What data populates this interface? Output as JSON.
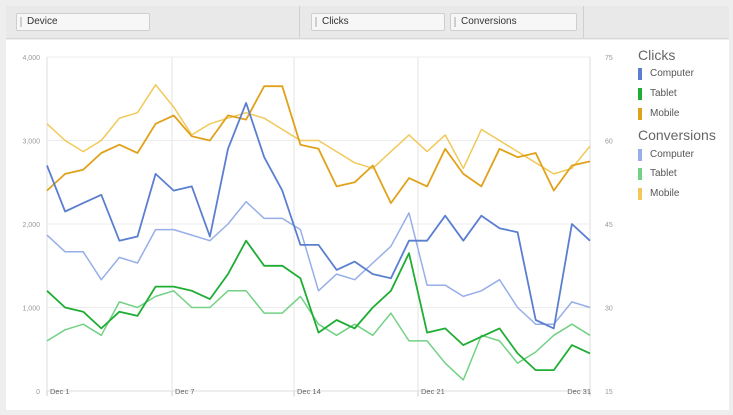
{
  "toolbar": {
    "dimension_label": "Device",
    "metric1_label": "Clicks",
    "metric2_label": "Conversions"
  },
  "legend": {
    "clicks_title": "Clicks",
    "conversions_title": "Conversions",
    "clicks_items": [
      "Computer",
      "Tablet",
      "Mobile"
    ],
    "conversions_items": [
      "Computer",
      "Tablet",
      "Mobile"
    ]
  },
  "colors": {
    "clicks_computer": "#5b7fd0",
    "clicks_tablet": "#1fad34",
    "clicks_mobile": "#e0a21b",
    "conversions_computer": "#97aee8",
    "conversions_tablet": "#72d184",
    "conversions_mobile": "#f1c95a"
  },
  "chart_data": {
    "type": "line",
    "x_ticks": [
      "Dec 1",
      "Dec 7",
      "Dec 14",
      "Dec 21",
      "Dec 31"
    ],
    "y_left_ticks": [
      "0",
      "1,000",
      "2,000",
      "3,000",
      "4,000"
    ],
    "y_right_ticks": [
      "15",
      "30",
      "45",
      "60",
      "75"
    ],
    "y_left_range": [
      0,
      4000
    ],
    "y_right_range": [
      15,
      75
    ],
    "grid": true,
    "legend_position": "right",
    "x": [
      1,
      2,
      3,
      4,
      5,
      6,
      7,
      8,
      9,
      10,
      11,
      12,
      13,
      14,
      15,
      16,
      17,
      18,
      19,
      20,
      21,
      22,
      23,
      24,
      25,
      26,
      27,
      28,
      29,
      30,
      31
    ],
    "series": [
      {
        "name": "Clicks: Computer",
        "axis": "left",
        "values": [
          2700,
          2150,
          2250,
          2350,
          1800,
          1850,
          2600,
          2400,
          2450,
          1850,
          2900,
          3450,
          2800,
          2400,
          1750,
          1750,
          1450,
          1550,
          1400,
          1350,
          1800,
          1800,
          2100,
          1800,
          2100,
          1950,
          1900,
          850,
          750,
          2000,
          1800
        ]
      },
      {
        "name": "Clicks: Tablet",
        "axis": "left",
        "values": [
          1200,
          1000,
          950,
          750,
          950,
          900,
          1250,
          1250,
          1200,
          1100,
          1400,
          1800,
          1500,
          1500,
          1350,
          700,
          850,
          750,
          1000,
          1200,
          1650,
          700,
          750,
          550,
          650,
          750,
          450,
          250,
          250,
          550,
          450
        ]
      },
      {
        "name": "Clicks: Mobile",
        "axis": "left",
        "values": [
          2400,
          2600,
          2650,
          2850,
          2950,
          2850,
          3200,
          3300,
          3050,
          3000,
          3300,
          3250,
          3650,
          3650,
          2950,
          2900,
          2450,
          2500,
          2700,
          2250,
          2550,
          2450,
          2900,
          2600,
          2450,
          2900,
          2800,
          2850,
          2400,
          2700,
          2750
        ]
      },
      {
        "name": "Conversions: Computer",
        "axis": "right",
        "values": [
          43,
          40,
          40,
          35,
          39,
          38,
          44,
          44,
          43,
          42,
          45,
          49,
          46,
          46,
          44,
          33,
          36,
          35,
          38,
          41,
          47,
          34,
          34,
          32,
          33,
          35,
          30,
          27,
          27,
          31,
          30
        ]
      },
      {
        "name": "Conversions: Tablet",
        "axis": "right",
        "values": [
          24,
          26,
          27,
          25,
          31,
          30,
          32,
          33,
          30,
          30,
          33,
          33,
          29,
          29,
          32,
          27,
          25,
          27,
          25,
          29,
          24,
          24,
          20,
          17,
          25,
          24,
          20,
          22,
          25,
          27,
          25
        ]
      },
      {
        "name": "Conversions: Mobile",
        "axis": "right",
        "values": [
          63,
          60,
          58,
          60,
          64,
          65,
          70,
          66,
          61,
          63,
          64,
          65,
          64,
          62,
          60,
          60,
          58,
          56,
          55,
          58,
          61,
          58,
          61,
          55,
          62,
          60,
          58,
          56,
          54,
          55,
          59
        ]
      }
    ]
  }
}
